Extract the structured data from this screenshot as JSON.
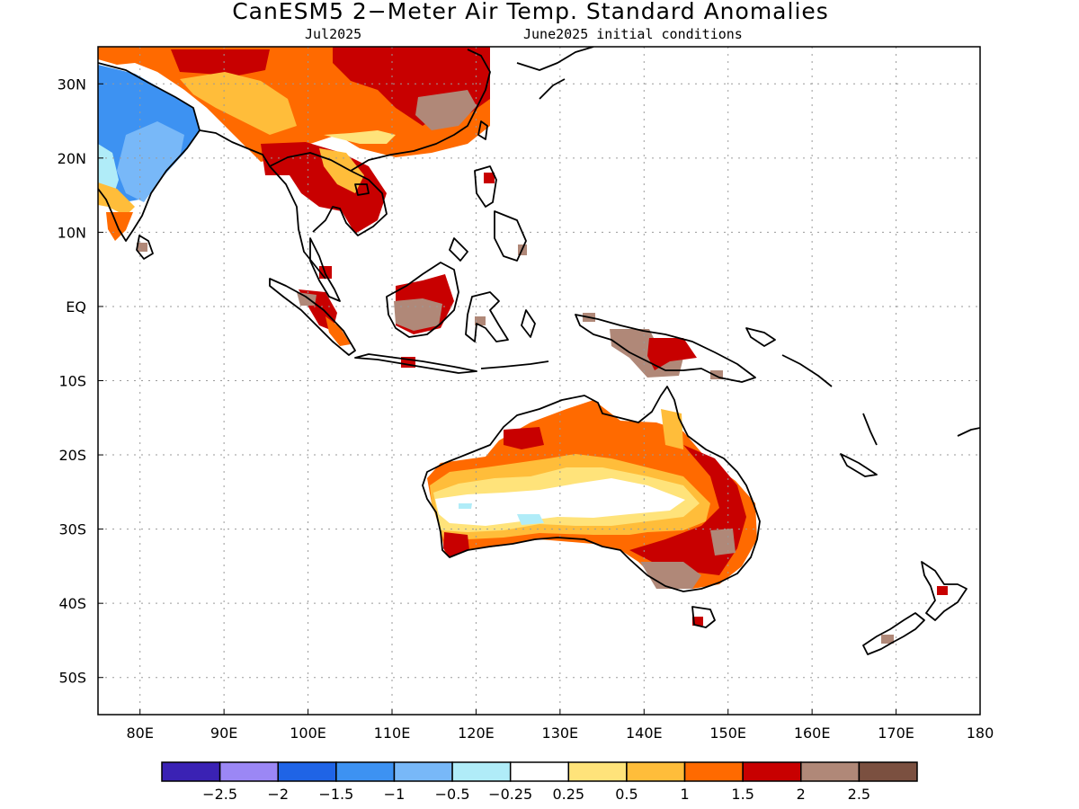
{
  "title": "CanESM5 2−Meter Air Temp. Standard Anomalies",
  "subtitle_left": "Jul2025",
  "subtitle_right": "June2025 initial conditions",
  "map": {
    "lon_range": [
      75,
      180
    ],
    "lat_range": [
      -55,
      35
    ],
    "lat_ticks": [
      {
        "value": 30,
        "label": "30N"
      },
      {
        "value": 20,
        "label": "20N"
      },
      {
        "value": 10,
        "label": "10N"
      },
      {
        "value": 0,
        "label": "EQ"
      },
      {
        "value": -10,
        "label": "10S"
      },
      {
        "value": -20,
        "label": "20S"
      },
      {
        "value": -30,
        "label": "30S"
      },
      {
        "value": -40,
        "label": "40S"
      },
      {
        "value": -50,
        "label": "50S"
      }
    ],
    "lon_ticks": [
      {
        "value": 80,
        "label": "80E"
      },
      {
        "value": 90,
        "label": "90E"
      },
      {
        "value": 100,
        "label": "100E"
      },
      {
        "value": 110,
        "label": "110E"
      },
      {
        "value": 120,
        "label": "120E"
      },
      {
        "value": 130,
        "label": "130E"
      },
      {
        "value": 140,
        "label": "140E"
      },
      {
        "value": 150,
        "label": "150E"
      },
      {
        "value": 160,
        "label": "160E"
      },
      {
        "value": 170,
        "label": "170E"
      },
      {
        "value": 180,
        "label": "180"
      }
    ],
    "grid": true
  },
  "colorbar": {
    "colors": [
      "#3a22b4",
      "#9b87f5",
      "#1f64e6",
      "#3d92f2",
      "#78b8f8",
      "#b0ecf8",
      "#ffffff",
      "#ffe37a",
      "#ffbd3a",
      "#ff6a00",
      "#c80000",
      "#b08878",
      "#7b5040"
    ],
    "labels": [
      "−2.5",
      "−2",
      "−1.5",
      "−1",
      "−0.5",
      "−0.25",
      "0.25",
      "0.5",
      "1",
      "1.5",
      "2",
      "2.5"
    ]
  }
}
